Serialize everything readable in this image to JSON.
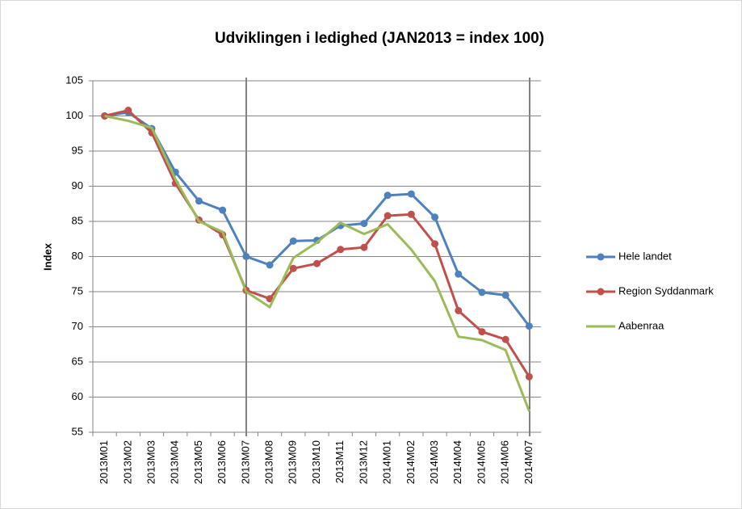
{
  "chart_data": {
    "type": "line",
    "title": "Udviklingen i ledighed (JAN2013 =  index 100)",
    "y_label": "Index",
    "categories": [
      "2013M01",
      "2013M02",
      "2013M03",
      "2013M04",
      "2013M05",
      "2013M06",
      "2013M07",
      "2013M08",
      "2013M09",
      "2013M10",
      "2013M11",
      "2013M12",
      "2014M01",
      "2014M02",
      "2014M03",
      "2014M04",
      "2014M05",
      "2014M06",
      "2014M07"
    ],
    "series": [
      {
        "name": "Hele landet",
        "color": "#4f81bd",
        "markers": true,
        "values": [
          100,
          100.5,
          98.2,
          92,
          87.9,
          86.6,
          80,
          78.8,
          82.2,
          82.3,
          84.4,
          84.7,
          88.7,
          88.9,
          85.6,
          77.5,
          74.9,
          74.5,
          70.1
        ]
      },
      {
        "name": "Region Syddanmark",
        "color": "#c0504d",
        "markers": true,
        "values": [
          100,
          100.8,
          97.6,
          90.4,
          85.2,
          83.1,
          75.2,
          74,
          78.3,
          79,
          81,
          81.3,
          85.8,
          86,
          81.8,
          72.3,
          69.3,
          68.2,
          62.9
        ]
      },
      {
        "name": "Aabenraa",
        "color": "#9bbb59",
        "markers": false,
        "values": [
          100,
          99.3,
          98.3,
          91,
          85,
          83.5,
          75,
          72.8,
          79.8,
          82,
          84.8,
          83.2,
          84.6,
          81,
          76.5,
          68.6,
          68.1,
          66.7,
          58
        ]
      }
    ],
    "ylim": [
      55,
      105
    ],
    "yticks": [
      55,
      60,
      65,
      70,
      75,
      80,
      85,
      90,
      95,
      100,
      105
    ],
    "grid": true,
    "legend": "right"
  }
}
